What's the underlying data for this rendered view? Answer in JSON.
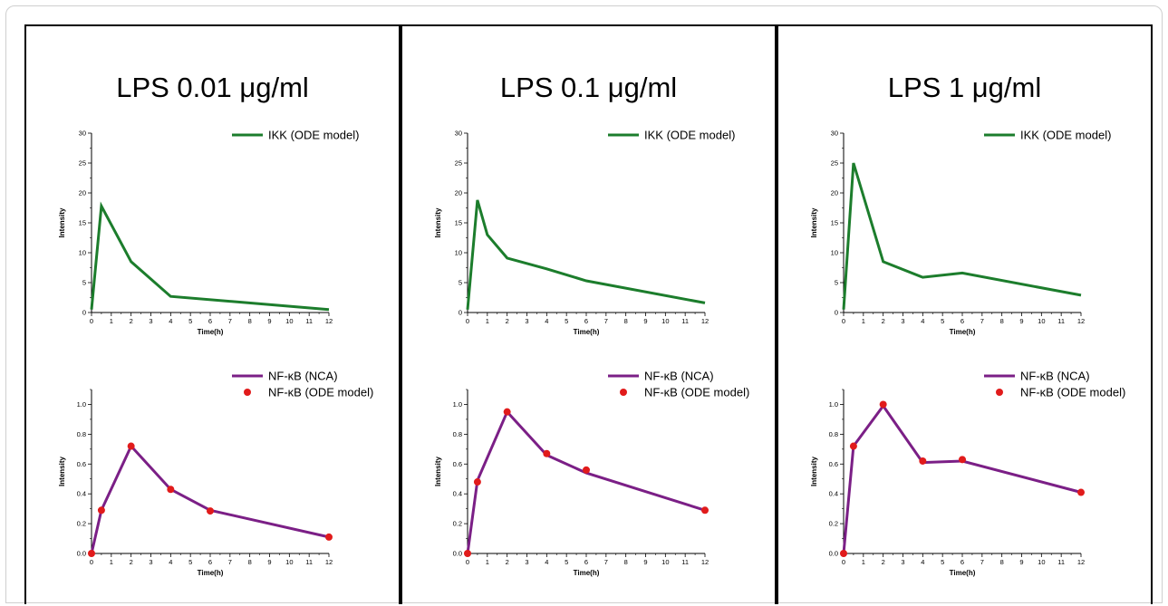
{
  "colors": {
    "ikk_line": "#1c7d2c",
    "nfkb_line": "#7b1f86",
    "nfkb_points": "#e11b1b"
  },
  "chart_data": [
    {
      "panel_title": "LPS 0.01 μg/ml",
      "charts": [
        {
          "type": "line",
          "xlabel": "Time(h)",
          "ylabel": "Intensity",
          "xlim": [
            0,
            12
          ],
          "ylim": [
            0,
            30
          ],
          "xticks": [
            "0",
            "1",
            "2",
            "3",
            "4",
            "5",
            "6",
            "7",
            "8",
            "9",
            "10",
            "11",
            "12"
          ],
          "yticks": [
            "0",
            "5",
            "10",
            "15",
            "20",
            "25",
            "30"
          ],
          "series": [
            {
              "name": "IKK (ODE model)",
              "kind": "line",
              "x": [
                0,
                0.5,
                2,
                4,
                12
              ],
              "y": [
                0.5,
                17.8,
                8.5,
                2.7,
                0.5
              ]
            }
          ]
        },
        {
          "type": "line",
          "xlabel": "Time(h)",
          "ylabel": "Intensity",
          "xlim": [
            0,
            12
          ],
          "ylim": [
            0,
            1.1
          ],
          "xticks": [
            "0",
            "1",
            "2",
            "3",
            "4",
            "5",
            "6",
            "7",
            "8",
            "9",
            "10",
            "11",
            "12"
          ],
          "yticks": [
            "0.0",
            "0.2",
            "0.4",
            "0.6",
            "0.8",
            "1.0"
          ],
          "series": [
            {
              "name": "NF-κB (NCA)",
              "kind": "line",
              "x": [
                0,
                0.5,
                2,
                4,
                6,
                12
              ],
              "y": [
                0,
                0.29,
                0.72,
                0.43,
                0.29,
                0.11
              ]
            },
            {
              "name": "NF-κB (ODE model)",
              "kind": "scatter",
              "x": [
                0,
                0.5,
                2,
                4,
                6,
                12
              ],
              "y": [
                0,
                0.29,
                0.72,
                0.43,
                0.285,
                0.11
              ]
            }
          ]
        }
      ]
    },
    {
      "panel_title": "LPS 0.1 μg/ml",
      "charts": [
        {
          "type": "line",
          "xlabel": "Time(h)",
          "ylabel": "Intensity",
          "xlim": [
            0,
            12
          ],
          "ylim": [
            0,
            30
          ],
          "xticks": [
            "0",
            "1",
            "2",
            "3",
            "4",
            "5",
            "6",
            "7",
            "8",
            "9",
            "10",
            "11",
            "12"
          ],
          "yticks": [
            "0",
            "5",
            "10",
            "15",
            "20",
            "25",
            "30"
          ],
          "series": [
            {
              "name": "IKK (ODE model)",
              "kind": "line",
              "x": [
                0,
                0.5,
                1,
                2,
                4,
                6,
                12
              ],
              "y": [
                0.5,
                18.8,
                13,
                9.1,
                7.3,
                5.3,
                1.6
              ]
            }
          ]
        },
        {
          "type": "line",
          "xlabel": "Time(h)",
          "ylabel": "Intensity",
          "xlim": [
            0,
            12
          ],
          "ylim": [
            0,
            1.1
          ],
          "xticks": [
            "0",
            "1",
            "2",
            "3",
            "4",
            "5",
            "6",
            "7",
            "8",
            "9",
            "10",
            "11",
            "12"
          ],
          "yticks": [
            "0.0",
            "0.2",
            "0.4",
            "0.6",
            "0.8",
            "1.0"
          ],
          "series": [
            {
              "name": "NF-κB (NCA)",
              "kind": "line",
              "x": [
                0,
                0.5,
                2,
                4,
                6,
                12
              ],
              "y": [
                0,
                0.49,
                0.95,
                0.66,
                0.54,
                0.29
              ]
            },
            {
              "name": "NF-κB (ODE model)",
              "kind": "scatter",
              "x": [
                0,
                0.5,
                2,
                4,
                6,
                12
              ],
              "y": [
                0,
                0.48,
                0.95,
                0.67,
                0.56,
                0.29
              ]
            }
          ]
        }
      ]
    },
    {
      "panel_title": "LPS 1 μg/ml",
      "charts": [
        {
          "type": "line",
          "xlabel": "Time(h)",
          "ylabel": "Intensity",
          "xlim": [
            0,
            12
          ],
          "ylim": [
            0,
            30
          ],
          "xticks": [
            "0",
            "1",
            "2",
            "3",
            "4",
            "5",
            "6",
            "7",
            "8",
            "9",
            "10",
            "11",
            "12"
          ],
          "yticks": [
            "0",
            "5",
            "10",
            "15",
            "20",
            "25",
            "30"
          ],
          "series": [
            {
              "name": "IKK (ODE model)",
              "kind": "line",
              "x": [
                0,
                0.5,
                2,
                4,
                6,
                12
              ],
              "y": [
                0.5,
                25,
                8.5,
                5.9,
                6.6,
                2.9
              ]
            }
          ]
        },
        {
          "type": "line",
          "xlabel": "Time(h)",
          "ylabel": "Intensity",
          "xlim": [
            0,
            12
          ],
          "ylim": [
            0,
            1.1
          ],
          "xticks": [
            "0",
            "1",
            "2",
            "3",
            "4",
            "5",
            "6",
            "7",
            "8",
            "9",
            "10",
            "11",
            "12"
          ],
          "yticks": [
            "0.0",
            "0.2",
            "0.4",
            "0.6",
            "0.8",
            "1.0"
          ],
          "series": [
            {
              "name": "NF-κB (NCA)",
              "kind": "line",
              "x": [
                0,
                0.5,
                2,
                4,
                6,
                12
              ],
              "y": [
                0,
                0.72,
                0.99,
                0.61,
                0.62,
                0.41
              ]
            },
            {
              "name": "NF-κB (ODE model)",
              "kind": "scatter",
              "x": [
                0,
                0.5,
                2,
                4,
                6,
                12
              ],
              "y": [
                0,
                0.72,
                1.0,
                0.62,
                0.63,
                0.41
              ]
            }
          ]
        }
      ]
    }
  ]
}
